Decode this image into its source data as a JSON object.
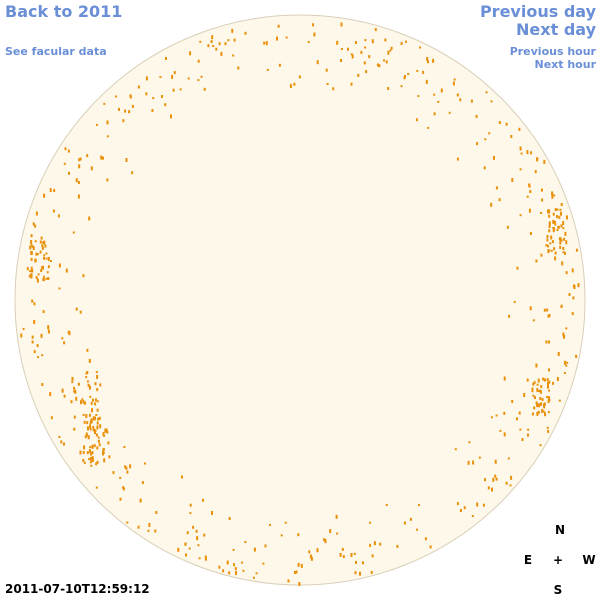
{
  "nav": {
    "back": "Back to 2011",
    "facular": "See facular data",
    "previous_day": "Previous day",
    "next_day": "Next day",
    "previous_hour": "Previous hour",
    "next_hour": "Next hour"
  },
  "timestamp": "2011-07-10T12:59:12",
  "compass": {
    "north": "N",
    "east": "E",
    "center": "+",
    "west": "W",
    "south": "S"
  }
}
